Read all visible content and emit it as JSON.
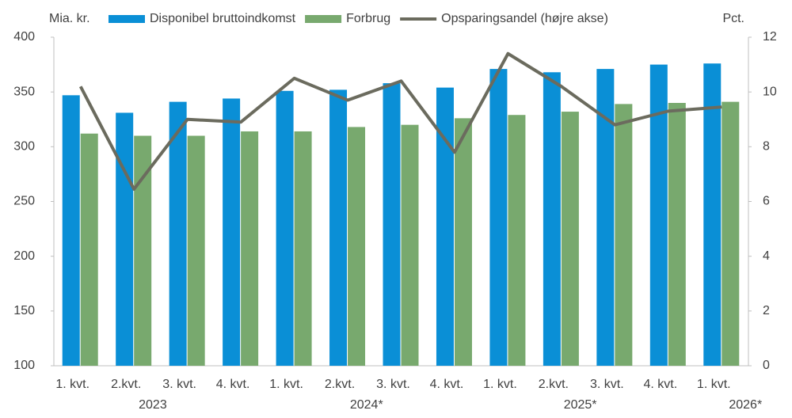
{
  "chart_data": {
    "type": "bar_line",
    "y_label": "Mia. kr.",
    "y2_label": "Pct.",
    "categories": [
      "1. kvt.",
      "2.kvt.",
      "3. kvt.",
      "4. kvt.",
      "1. kvt.",
      "2.kvt.",
      "3. kvt.",
      "4. kvt.",
      "1. kvt.",
      "2.kvt.",
      "3. kvt.",
      "4. kvt.",
      "1. kvt."
    ],
    "years": [
      "2023",
      null,
      null,
      null,
      "2024*",
      null,
      null,
      null,
      "2025*",
      null,
      null,
      null,
      "2026*"
    ],
    "series": [
      {
        "name": "Disponibel bruttoindkomst",
        "color": "#0a8fd6",
        "values": [
          347,
          331,
          341,
          344,
          351,
          352,
          358,
          354,
          371,
          368,
          371,
          375,
          376
        ]
      },
      {
        "name": "Forbrug",
        "color": "#78a96e",
        "values": [
          312,
          310,
          310,
          314,
          314,
          318,
          320,
          326,
          329,
          332,
          339,
          340,
          341
        ]
      },
      {
        "name": "Opsparingsandel (højre akse)",
        "color": "#6b6b5e",
        "axis": "y2",
        "values": [
          10.2,
          6.45,
          9.0,
          8.9,
          10.5,
          9.7,
          10.4,
          7.8,
          11.4,
          10.2,
          8.8,
          9.3,
          9.45
        ]
      }
    ],
    "ylim": [
      100,
      400
    ],
    "yticks": [
      100,
      150,
      200,
      250,
      300,
      350,
      400
    ],
    "y2lim": [
      0,
      12
    ],
    "y2ticks": [
      0,
      2,
      4,
      6,
      8,
      10,
      12
    ],
    "grid": false
  }
}
